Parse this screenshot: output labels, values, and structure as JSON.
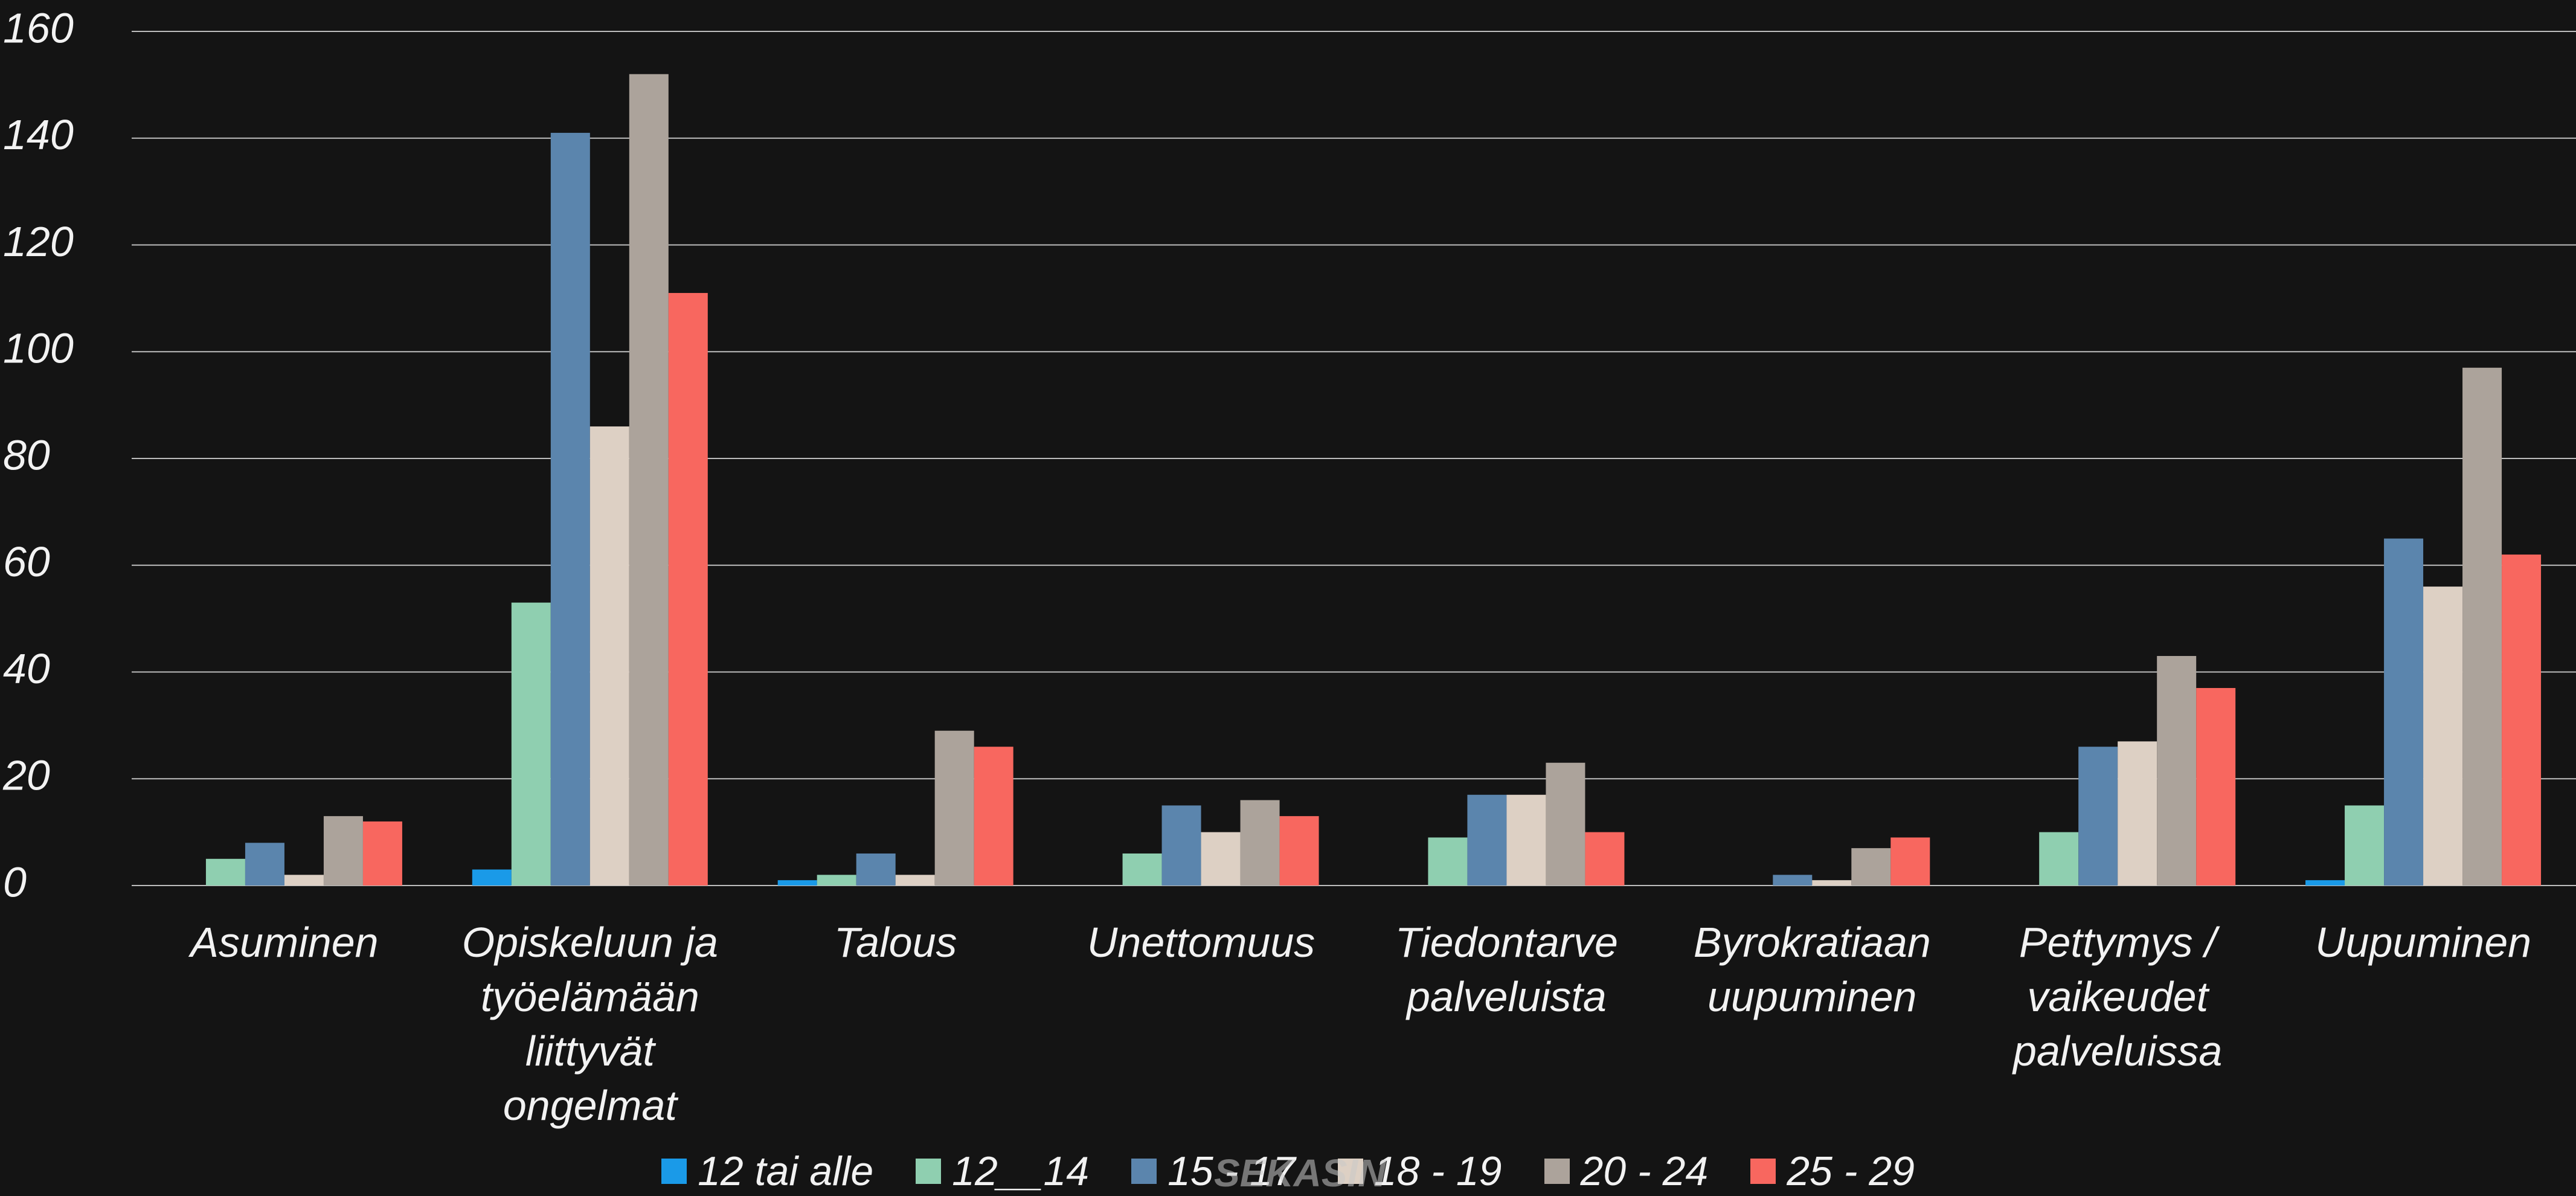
{
  "chart_data": {
    "type": "bar",
    "categories": [
      "Asuminen",
      "Opiskeluun ja työelämään liittyvät ongelmat",
      "Talous",
      "Unettomuus",
      "Tiedontarve palveluista",
      "Byrokratiaan uupuminen",
      "Pettymys / vaikeudet palveluissa",
      "Uupuminen"
    ],
    "series": [
      {
        "name": "12 tai alle",
        "color": "#1a9ae8",
        "values": [
          0,
          3,
          1,
          0,
          0,
          0,
          0,
          1
        ]
      },
      {
        "name": "12__14",
        "color": "#8fcfb0",
        "values": [
          5,
          53,
          2,
          6,
          9,
          0,
          10,
          15
        ]
      },
      {
        "name": "15 - 17",
        "color": "#5b85ad",
        "values": [
          8,
          141,
          6,
          15,
          17,
          2,
          26,
          65
        ]
      },
      {
        "name": "18 - 19",
        "color": "#ddd0c4",
        "values": [
          2,
          86,
          2,
          10,
          17,
          1,
          27,
          56
        ]
      },
      {
        "name": "20 - 24",
        "color": "#aca39b",
        "values": [
          13,
          152,
          29,
          16,
          23,
          7,
          43,
          97
        ]
      },
      {
        "name": "25 - 29",
        "color": "#f8675f",
        "values": [
          12,
          111,
          26,
          13,
          10,
          9,
          37,
          62
        ]
      }
    ],
    "ylim": [
      0,
      160
    ],
    "yticks": [
      0,
      20,
      40,
      60,
      80,
      100,
      120,
      140,
      160
    ],
    "grid": true,
    "legend": "bottom",
    "watermark": "SEKASIN"
  }
}
